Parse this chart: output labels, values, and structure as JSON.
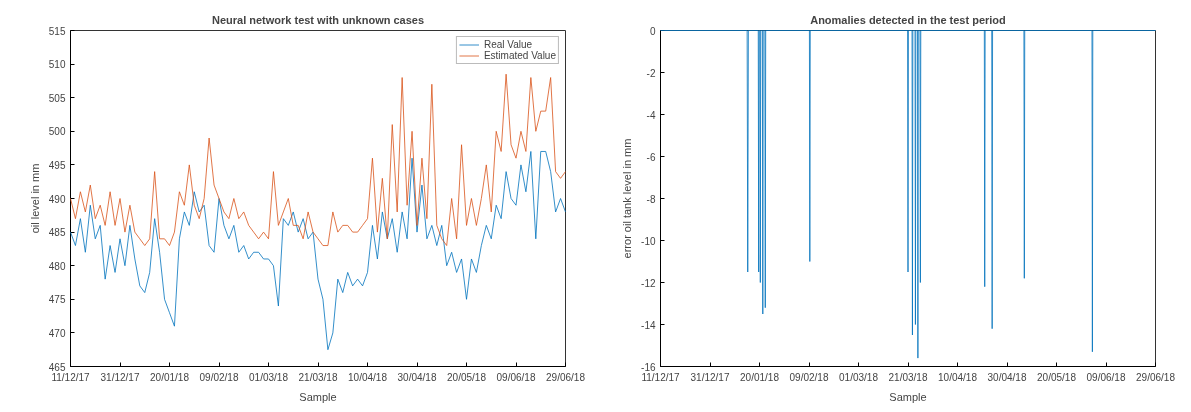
{
  "chart_data": [
    {
      "type": "line",
      "title": "Neural network test with unknown cases",
      "xlabel": "Sample",
      "ylabel": "oil level in mm",
      "x": [
        "2017-12-11",
        "2017-12-13",
        "2017-12-15",
        "2017-12-17",
        "2017-12-19",
        "2017-12-21",
        "2017-12-23",
        "2017-12-25",
        "2017-12-27",
        "2017-12-29",
        "2017-12-31",
        "2018-01-02",
        "2018-01-04",
        "2018-01-06",
        "2018-01-08",
        "2018-01-10",
        "2018-01-12",
        "2018-01-14",
        "2018-01-16",
        "2018-01-18",
        "2018-01-20",
        "2018-01-22",
        "2018-01-24",
        "2018-01-26",
        "2018-01-28",
        "2018-01-30",
        "2018-02-01",
        "2018-02-03",
        "2018-02-05",
        "2018-02-07",
        "2018-02-09",
        "2018-02-11",
        "2018-02-13",
        "2018-02-15",
        "2018-02-17",
        "2018-02-19",
        "2018-02-21",
        "2018-02-23",
        "2018-02-25",
        "2018-02-27",
        "2018-03-01",
        "2018-03-03",
        "2018-03-05",
        "2018-03-07",
        "2018-03-09",
        "2018-03-11",
        "2018-03-13",
        "2018-03-15",
        "2018-03-17",
        "2018-03-19",
        "2018-03-21",
        "2018-03-23",
        "2018-03-25",
        "2018-03-27",
        "2018-03-29",
        "2018-03-31",
        "2018-04-02",
        "2018-04-04",
        "2018-04-06",
        "2018-04-08",
        "2018-04-10",
        "2018-04-12",
        "2018-04-14",
        "2018-04-16",
        "2018-04-18",
        "2018-04-20",
        "2018-04-22",
        "2018-04-24",
        "2018-04-26",
        "2018-04-28",
        "2018-04-30",
        "2018-05-02",
        "2018-05-04",
        "2018-05-06",
        "2018-05-08",
        "2018-05-10",
        "2018-05-12",
        "2018-05-14",
        "2018-05-16",
        "2018-05-18",
        "2018-05-20",
        "2018-05-22",
        "2018-05-24",
        "2018-05-26",
        "2018-05-28",
        "2018-05-30",
        "2018-06-01",
        "2018-06-03",
        "2018-06-05",
        "2018-06-07",
        "2018-06-09",
        "2018-06-11",
        "2018-06-13",
        "2018-06-15",
        "2018-06-17",
        "2018-06-19",
        "2018-06-21",
        "2018-06-23",
        "2018-06-25",
        "2018-06-27",
        "2018-06-29"
      ],
      "series": [
        {
          "name": "Real Value",
          "color": "#0072bd",
          "values": [
            485,
            483,
            487,
            482,
            489,
            484,
            486,
            478,
            483,
            479,
            484,
            480,
            486,
            481,
            477,
            476,
            479,
            487,
            482,
            475,
            473,
            471,
            484,
            488,
            486,
            491,
            488,
            489,
            483,
            482,
            490,
            486,
            484,
            486,
            482,
            483,
            481,
            482,
            482,
            481,
            481,
            480,
            474,
            487,
            486,
            488,
            485,
            487,
            484,
            485,
            478,
            475,
            467.5,
            470,
            478,
            476,
            479,
            477,
            478,
            477,
            479,
            486,
            481,
            488,
            484,
            487,
            482,
            488,
            484,
            496,
            485,
            492,
            484,
            486,
            483,
            486,
            480,
            482,
            479,
            481,
            475,
            481,
            479,
            483,
            486,
            484,
            489,
            487,
            494,
            490,
            489,
            495,
            491,
            497,
            484,
            497,
            497,
            494,
            488,
            490,
            488
          ]
        },
        {
          "name": "Estimated Value",
          "color": "#d95319",
          "values": [
            490,
            487,
            491,
            488,
            492,
            487,
            489,
            486,
            491,
            486,
            490,
            485,
            489,
            485,
            484,
            483,
            484,
            494,
            484,
            484,
            483,
            485,
            491,
            489,
            495,
            489,
            487,
            490,
            499,
            492,
            490,
            488,
            487,
            490,
            487,
            488,
            486,
            485,
            484,
            485,
            484,
            494,
            486,
            488,
            490,
            486,
            486,
            484,
            488,
            485,
            484,
            483,
            483,
            488,
            485,
            486,
            486,
            485,
            485,
            486,
            487,
            496,
            485,
            493,
            484,
            501,
            488,
            508,
            489,
            500,
            486,
            496,
            487,
            507,
            486,
            484,
            483,
            490,
            484,
            498,
            486,
            490,
            486,
            490,
            495,
            488,
            500,
            497,
            508.5,
            498,
            496,
            500,
            497,
            508,
            500,
            503,
            503,
            508,
            494,
            493,
            494
          ]
        }
      ],
      "xlim": [
        "2017-12-11",
        "2018-06-29"
      ],
      "xticks": [
        {
          "value": "2017-12-11",
          "label": "11/12/17"
        },
        {
          "value": "2017-12-31",
          "label": "31/12/17"
        },
        {
          "value": "2018-01-20",
          "label": "20/01/18"
        },
        {
          "value": "2018-02-09",
          "label": "09/02/18"
        },
        {
          "value": "2018-03-01",
          "label": "01/03/18"
        },
        {
          "value": "2018-03-21",
          "label": "21/03/18"
        },
        {
          "value": "2018-04-10",
          "label": "10/04/18"
        },
        {
          "value": "2018-04-30",
          "label": "30/04/18"
        },
        {
          "value": "2018-05-20",
          "label": "20/05/18"
        },
        {
          "value": "2018-06-09",
          "label": "09/06/18"
        },
        {
          "value": "2018-06-29",
          "label": "29/06/18"
        }
      ],
      "ylim": [
        465,
        515
      ],
      "yticks": [
        465,
        470,
        475,
        480,
        485,
        490,
        495,
        500,
        505,
        510,
        515
      ],
      "legend": "top right",
      "grid": false
    },
    {
      "type": "line",
      "title": "Anomalies detected in the test period",
      "xlabel": "Sample",
      "ylabel": "error oil tank level in mm",
      "series": [
        {
          "color": "#0072bd",
          "x": [
            "2017-12-11",
            "2018-01-15",
            "2018-01-15T06:00",
            "2018-01-15T12:00",
            "2018-01-19T12:00",
            "2018-01-19T16:00",
            "2018-01-19T20:00",
            "2018-01-20T04:00",
            "2018-01-20T08:00",
            "2018-01-20T12:00",
            "2018-01-21T04:00",
            "2018-01-21T08:00",
            "2018-01-21T12:00",
            "2018-01-22T04:00",
            "2018-01-22T08:00",
            "2018-01-22T12:00",
            "2018-02-09T04:00",
            "2018-02-09T08:00",
            "2018-02-09T12:00",
            "2018-03-20T20:00",
            "2018-03-21",
            "2018-03-21T04:00",
            "2018-03-22T15:00",
            "2018-03-22T19:00",
            "2018-03-22T23:00",
            "2018-03-23T20:00",
            "2018-03-24",
            "2018-03-24T04:00",
            "2018-03-24T20:00",
            "2018-03-25",
            "2018-03-25T04:00",
            "2018-03-25T20:00",
            "2018-03-26",
            "2018-03-26T04:00",
            "2018-04-20T20:00",
            "2018-04-21",
            "2018-04-21T04:00",
            "2018-04-23T20:00",
            "2018-04-24",
            "2018-04-24T04:00",
            "2018-05-06T20:00",
            "2018-05-07",
            "2018-05-07T04:00",
            "2018-06-03T08:00",
            "2018-06-03T12:00",
            "2018-06-03T16:00",
            "2018-06-29"
          ],
          "values": [
            0,
            0,
            -11.5,
            0,
            0,
            -11.5,
            0,
            0,
            -12,
            0,
            0,
            -13.5,
            0,
            0,
            -13.2,
            0,
            0,
            -11,
            0,
            0,
            -11.5,
            0,
            0,
            -14.5,
            0,
            0,
            -14,
            0,
            0,
            -15.6,
            0,
            0,
            -12,
            0,
            0,
            -12.2,
            0,
            0,
            -14.2,
            0,
            0,
            -11.8,
            0,
            0,
            -15.3,
            0,
            0
          ]
        }
      ],
      "xlim": [
        "2017-12-11",
        "2018-06-29"
      ],
      "xticks": [
        {
          "value": "2017-12-11",
          "label": "11/12/17"
        },
        {
          "value": "2017-12-31",
          "label": "31/12/17"
        },
        {
          "value": "2018-01-20",
          "label": "20/01/18"
        },
        {
          "value": "2018-02-09",
          "label": "09/02/18"
        },
        {
          "value": "2018-03-01",
          "label": "01/03/18"
        },
        {
          "value": "2018-03-21",
          "label": "21/03/18"
        },
        {
          "value": "2018-04-10",
          "label": "10/04/18"
        },
        {
          "value": "2018-04-30",
          "label": "30/04/18"
        },
        {
          "value": "2018-05-20",
          "label": "20/05/18"
        },
        {
          "value": "2018-06-09",
          "label": "09/06/18"
        },
        {
          "value": "2018-06-29",
          "label": "29/06/18"
        }
      ],
      "ylim": [
        -16,
        0
      ],
      "yticks": [
        -16,
        -14,
        -12,
        -10,
        -8,
        -6,
        -4,
        -2,
        0
      ],
      "grid": false
    }
  ]
}
